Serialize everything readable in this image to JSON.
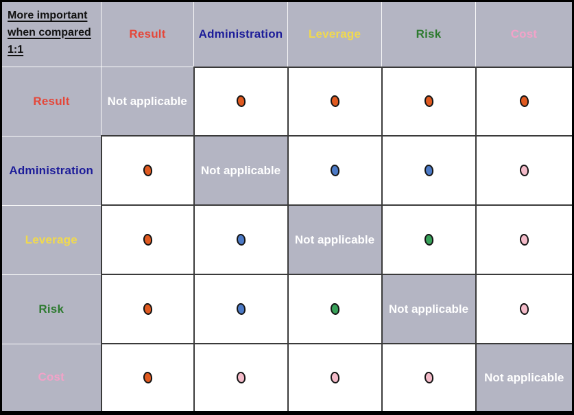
{
  "corner": {
    "label": "More important when compared 1:1"
  },
  "not_applicable_label": "Not applicable",
  "criteria": [
    {
      "name": "Result",
      "label_color": "#e4473a",
      "dot_color": "#e05a20"
    },
    {
      "name": "Administration",
      "label_color": "#1c1c99",
      "dot_color": "#4c7ac6"
    },
    {
      "name": "Leverage",
      "label_color": "#f0d94f",
      "dot_color": "#f0d94f"
    },
    {
      "name": "Risk",
      "label_color": "#2d7a2f",
      "dot_color": "#38a159"
    },
    {
      "name": "Cost",
      "label_color": "#f2a2c8",
      "dot_color": "#f4bbc9"
    }
  ],
  "matrix": [
    [
      null,
      "Result",
      "Result",
      "Result",
      "Result"
    ],
    [
      "Result",
      null,
      "Administration",
      "Administration",
      "Cost"
    ],
    [
      "Result",
      "Administration",
      null,
      "Risk",
      "Cost"
    ],
    [
      "Result",
      "Administration",
      "Risk",
      null,
      "Cost"
    ],
    [
      "Result",
      "Cost",
      "Cost",
      "Cost",
      null
    ]
  ],
  "colors": {
    "header_bg": "#b4b5c3",
    "cell_bg": "#ffffff",
    "grid_dark": "#3a3a3a",
    "grid_light": "#fafafa",
    "outer_border": "#000000",
    "na_text": "#ffffff",
    "dot_outline": "#151515"
  }
}
